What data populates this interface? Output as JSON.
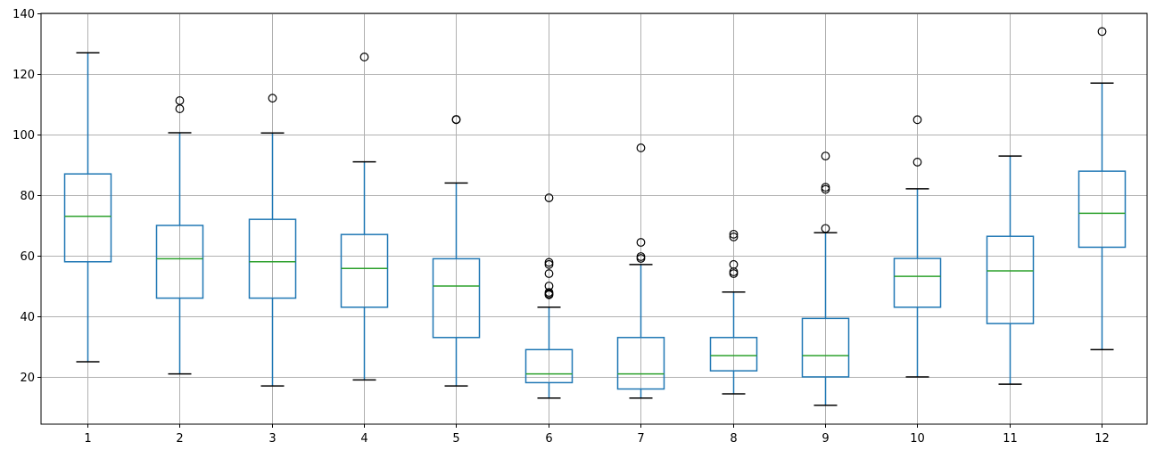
{
  "chart_data": {
    "type": "boxplot",
    "title": "",
    "xlabel": "",
    "ylabel": "",
    "categories": [
      "1",
      "2",
      "3",
      "4",
      "5",
      "6",
      "7",
      "8",
      "9",
      "10",
      "11",
      "12"
    ],
    "ylim": [
      4.4,
      140
    ],
    "yticks": [
      20,
      40,
      60,
      80,
      100,
      120,
      140
    ],
    "grid": true,
    "legend": null,
    "colors": {
      "box": "#1f77b4",
      "median": "#2ca02c",
      "whisker": "#1f77b4",
      "cap": "#000000",
      "flier": "#000000",
      "grid": "#b0b0b0",
      "axis": "#000000"
    },
    "boxes": [
      {
        "label": "1",
        "whisker_low": 25,
        "q1": 58,
        "median": 73,
        "q3": 87,
        "whisker_high": 127,
        "outliers": []
      },
      {
        "label": "2",
        "whisker_low": 21,
        "q1": 46,
        "median": 59,
        "q3": 70,
        "whisker_high": 100.6,
        "outliers": [
          108.5,
          111.2
        ]
      },
      {
        "label": "3",
        "whisker_low": 17,
        "q1": 46,
        "median": 58,
        "q3": 72,
        "whisker_high": 100.5,
        "outliers": [
          112
        ]
      },
      {
        "label": "4",
        "whisker_low": 19,
        "q1": 43,
        "median": 55.8,
        "q3": 67,
        "whisker_high": 91,
        "outliers": [
          125.6
        ]
      },
      {
        "label": "5",
        "whisker_low": 17,
        "q1": 33,
        "median": 50,
        "q3": 59,
        "whisker_high": 84,
        "outliers": [
          104.9,
          105
        ]
      },
      {
        "label": "6",
        "whisker_low": 13,
        "q1": 18.1,
        "median": 21,
        "q3": 29,
        "whisker_high": 43,
        "outliers": [
          47.1,
          47.4,
          47.9,
          50,
          54.1,
          57.1,
          57.8,
          79.1
        ]
      },
      {
        "label": "7",
        "whisker_low": 13,
        "q1": 16,
        "median": 21,
        "q3": 33,
        "whisker_high": 57.1,
        "outliers": [
          59.1,
          59.7,
          64.4,
          95.6
        ]
      },
      {
        "label": "8",
        "whisker_low": 14.4,
        "q1": 22,
        "median": 27,
        "q3": 33,
        "whisker_high": 48,
        "outliers": [
          54.1,
          54.7,
          57.1,
          66.2,
          67.1
        ]
      },
      {
        "label": "9",
        "whisker_low": 10.6,
        "q1": 20,
        "median": 27,
        "q3": 39.3,
        "whisker_high": 67.6,
        "outliers": [
          69,
          81.9,
          82.6,
          92.9
        ]
      },
      {
        "label": "10",
        "whisker_low": 20,
        "q1": 43,
        "median": 53.2,
        "q3": 59.1,
        "whisker_high": 82.1,
        "outliers": [
          90.9,
          104.9
        ]
      },
      {
        "label": "11",
        "whisker_low": 17.6,
        "q1": 37.6,
        "median": 55,
        "q3": 66.4,
        "whisker_high": 92.9,
        "outliers": []
      },
      {
        "label": "12",
        "whisker_low": 29,
        "q1": 62.8,
        "median": 74,
        "q3": 87.9,
        "whisker_high": 117,
        "outliers": [
          134
        ]
      }
    ]
  }
}
